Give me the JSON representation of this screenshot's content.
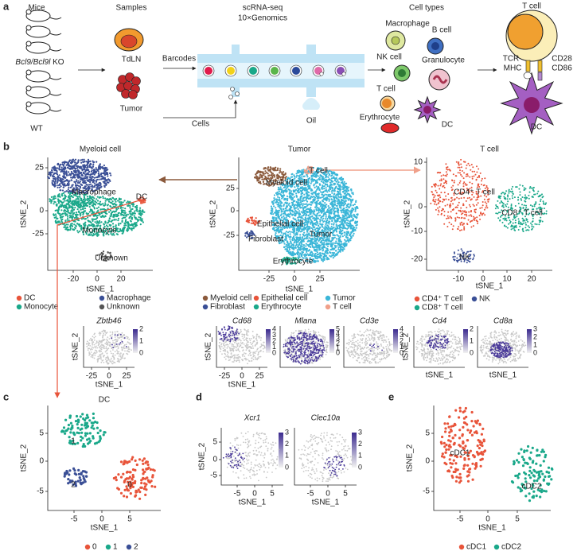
{
  "panel_a": {
    "label": "a",
    "mice": "Mice",
    "genotype": "Bcl9/Bcl9l",
    "genotype_suffix": " KO",
    "wt": "WT",
    "samples": "Samples",
    "tdln": "TdLN",
    "tumor": "Tumor",
    "scrna": "scRNA-seq",
    "platform": "10×Genomics",
    "barcodes": "Barcodes",
    "cells": "Cells",
    "oil": "Oil",
    "cell_types": "Cell types",
    "macrophage": "Macrophage",
    "b_cell": "B cell",
    "nk_cell": "NK cell",
    "granulocyte": "Granulocyte",
    "t_cell": "T cell",
    "erythrocyte": "Erythrocyte",
    "dc": "DC",
    "synapse_t_cell": "T cell",
    "tcr": "TCR",
    "mhc": "MHC",
    "cd28": "CD28",
    "cd86": "CD86",
    "synapse_dc": "DC"
  },
  "panel_b": {
    "label": "b",
    "myeloid": {
      "title": "Myeloid cell",
      "xlabel": "tSNE_1",
      "ylabel": "tSNE_2",
      "yticks": [
        "25",
        "0",
        "-25"
      ],
      "xticks": [
        "-20",
        "0",
        "20"
      ],
      "annotations": [
        "Macrophage",
        "DC",
        "Monocyte",
        "Unknown"
      ],
      "legend": [
        {
          "name": "DC",
          "color": "#e8543a"
        },
        {
          "name": "Macrophage",
          "color": "#3a4f96"
        },
        {
          "name": "Monocyte",
          "color": "#1aa88a"
        },
        {
          "name": "Unknown",
          "color": "#555555"
        }
      ]
    },
    "tumor": {
      "title": "Tumor",
      "xlabel": "tSNE_1",
      "ylabel": "tSNE_2",
      "yticks": [
        "25",
        "0",
        "-25"
      ],
      "xticks": [
        "-25",
        "0",
        "25"
      ],
      "annotations": [
        "Myeloid cell",
        "T cell",
        "Epithelial cell",
        "Tumor",
        "Fibroblast",
        "Erythrocyte"
      ],
      "legend": [
        {
          "name": "Myeloid cell",
          "color": "#8b5a3c"
        },
        {
          "name": "Epithelial cell",
          "color": "#e8543a"
        },
        {
          "name": "Tumor",
          "color": "#3bb6d8"
        },
        {
          "name": "Fibroblast",
          "color": "#3a4f96"
        },
        {
          "name": "Erythrocyte",
          "color": "#1aa88a"
        },
        {
          "name": "T cell",
          "color": "#f0a08a"
        }
      ]
    },
    "tcell": {
      "title": "T cell",
      "xlabel": "tSNE_1",
      "ylabel": "tSNE_2",
      "yticks": [
        "10",
        "0",
        "-10",
        "-20"
      ],
      "xticks": [
        "-10",
        "0",
        "10",
        "20"
      ],
      "annotations": [
        "CD4⁺ T cell",
        "CD8⁺ T cell",
        "NK"
      ],
      "legend": [
        {
          "name": "CD4⁺ T cell",
          "color": "#e8543a"
        },
        {
          "name": "NK",
          "color": "#3a4f96"
        },
        {
          "name": "CD8⁺ T cell",
          "color": "#1aa88a"
        }
      ]
    },
    "features": [
      {
        "gene": "Zbtb46",
        "ylabel": "tSNE_2",
        "xticks": [
          "-25",
          "0",
          "25"
        ],
        "xlabel": "tSNE_1",
        "colorbar": [
          "2",
          "1",
          "0"
        ]
      },
      {
        "gene": "Cd68",
        "ylabel": "tSNE_2",
        "xticks": [
          "-25",
          "0",
          "25"
        ],
        "xlabel": "tSNE_1",
        "colorbar": [
          "4",
          "3",
          "2",
          "1",
          "0"
        ]
      },
      {
        "gene": "Mlana",
        "colorbar": [
          "5",
          "4",
          "3",
          "2",
          "1",
          "0"
        ]
      },
      {
        "gene": "Cd3e",
        "colorbar": [
          "4",
          "3",
          "2",
          "1",
          "0"
        ]
      },
      {
        "gene": "Cd4",
        "ylabel": "tSNE_2",
        "xlabel": "tSNE_1",
        "colorbar": [
          "2",
          "1",
          "0"
        ]
      },
      {
        "gene": "Cd8a",
        "xlabel": "tSNE_1",
        "colorbar": [
          "3",
          "2",
          "1",
          "0"
        ]
      }
    ]
  },
  "panel_c": {
    "label": "c",
    "title": "DC",
    "xlabel": "tSNE_1",
    "ylabel": "tSNE_2",
    "yticks": [
      "5",
      "0",
      "-5"
    ],
    "xticks": [
      "-5",
      "0",
      "5"
    ],
    "annotations": [
      "1",
      "2",
      "0"
    ],
    "legend": [
      {
        "name": "0",
        "color": "#e8543a"
      },
      {
        "name": "1",
        "color": "#1aa88a"
      },
      {
        "name": "2",
        "color": "#3a4f96"
      }
    ]
  },
  "panel_d": {
    "label": "d",
    "plots": [
      {
        "gene": "Xcr1",
        "ylabel": "tSNE_2",
        "yticks": [
          "5",
          "0",
          "-5"
        ],
        "xticks": [
          "-5",
          "0",
          "5"
        ],
        "xlabel": "tSNE_1",
        "colorbar": [
          "3",
          "2",
          "1",
          "0"
        ]
      },
      {
        "gene": "Clec10a",
        "xticks": [
          "-5",
          "0",
          "5"
        ],
        "xlabel": "tSNE_1",
        "colorbar": [
          "3",
          "2",
          "1",
          "0"
        ]
      }
    ]
  },
  "panel_e": {
    "label": "e",
    "xlabel": "tSNE_1",
    "ylabel": "tSNE_2",
    "yticks": [
      "5",
      "0",
      "-5"
    ],
    "xticks": [
      "-5",
      "0",
      "5"
    ],
    "annotations": [
      "cDC1",
      "cDC2"
    ],
    "legend": [
      {
        "name": "cDC1",
        "color": "#e8543a"
      },
      {
        "name": "cDC2",
        "color": "#1aa88a"
      }
    ]
  }
}
